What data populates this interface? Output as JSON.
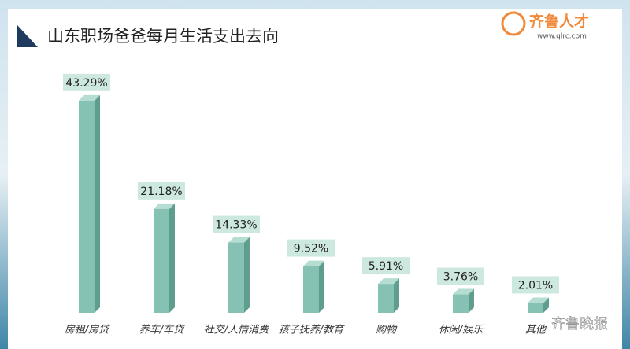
{
  "chart_data": {
    "type": "bar3d",
    "title": "山东职场爸爸每月生活支出去向",
    "categories": [
      "房租/房贷",
      "养车/车贷",
      "社交/人情消费",
      "孩子抚养/教育",
      "购物",
      "休闲/娱乐",
      "其他"
    ],
    "values": [
      43.29,
      21.18,
      14.33,
      9.52,
      5.91,
      3.76,
      2.01
    ],
    "value_labels": [
      "43.29%",
      "21.18%",
      "14.33%",
      "9.52%",
      "5.91%",
      "3.76%",
      "2.01%"
    ],
    "color": "#86c2b4"
  },
  "logo": {
    "name": "齐鲁人才",
    "url": "www.qlrc.com"
  },
  "watermark": "齐鲁晚报"
}
